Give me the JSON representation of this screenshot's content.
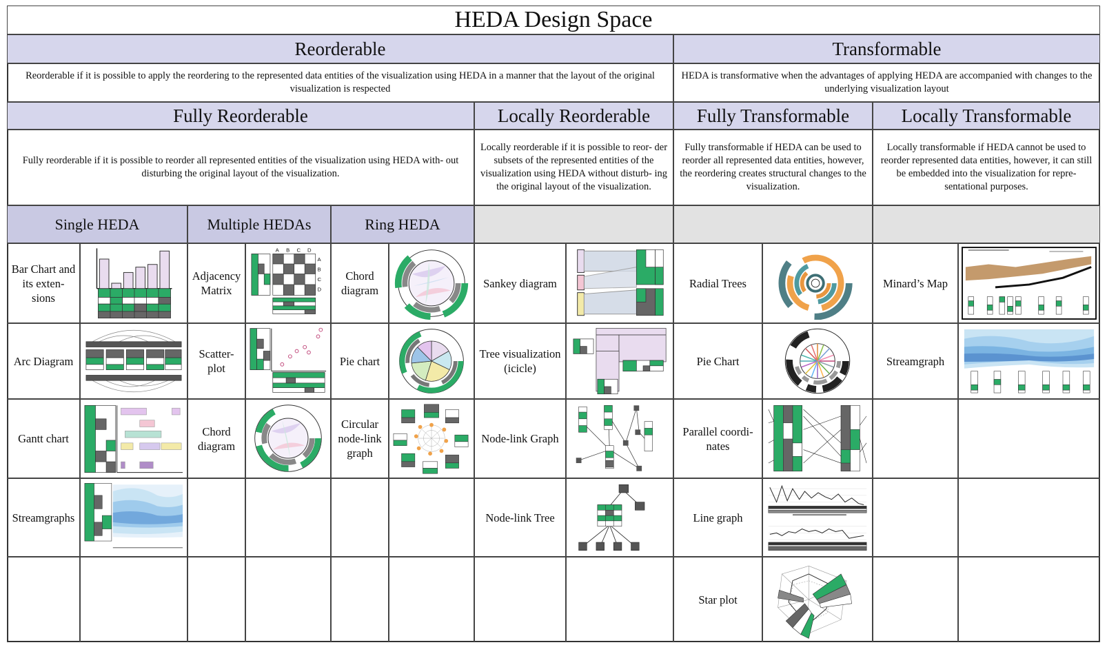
{
  "title": "HEDA Design Space",
  "reorderable": {
    "label": "Reorderable",
    "description": "Reorderable if it is possible to apply the reordering to the represented data entities of the visualization  using HEDA in a manner that the layout of the original visualization is respected"
  },
  "transformable": {
    "label": "Transformable",
    "description": "HEDA is transformative when the advantages of applying HEDA are accompanied with changes to the underlying visualization layout"
  },
  "fully_reorderable": {
    "label": "Fully Reorderable",
    "description": "Fully reorderable if it is possible to reorder all represented entities of the visualization using HEDA with- out disturbing the original layout of the visualization."
  },
  "locally_reorderable": {
    "label": "Locally Reorderable",
    "description": "Locally reorderable if it is possible to reor- der subsets of the represented entities of the visualization using HEDA without disturb- ing the original layout of the visualization."
  },
  "fully_transformable": {
    "label": "Fully Transformable",
    "description": "Fully transformable if HEDA can be used to reorder all represented data entities, however, the reordering creates structural changes to the visualization."
  },
  "locally_transformable": {
    "label": "Locally Transformable",
    "description": "Locally transformable if HEDA cannot be used to reorder represented data entities, however, it can still be embedded into the visualization for repre- sentational purposes."
  },
  "subcategories": {
    "single": "Single HEDA",
    "multiple": "Multiple HEDAs",
    "ring": "Ring HEDA"
  },
  "single_heda": [
    "Bar Chart and its exten- sions",
    "Arc Diagram",
    "Gantt chart",
    "Streamgraphs"
  ],
  "multiple_hedas": [
    "Adjacency Matrix",
    "Scatter- plot",
    "Chord diagram"
  ],
  "ring_heda": [
    "Chord diagram",
    "Pie chart",
    "Circular node-link graph"
  ],
  "locally_reorderable_items": [
    "Sankey diagram",
    "Tree visualization (icicle)",
    "Node-link Graph",
    "Node-link Tree"
  ],
  "fully_transformable_items": [
    "Radial Trees",
    "Pie Chart",
    "Parallel coordi- nates",
    "Line graph",
    "Star plot"
  ],
  "locally_transformable_items": [
    "Minard’s Map",
    "Streamgraph"
  ],
  "matrix_labels": [
    "A",
    "B",
    "C",
    "D"
  ],
  "colors": {
    "header": "#d6d6ec",
    "subheader": "#c9c9e3",
    "empty_header": "#e2e2e2",
    "heda_green": "#2bab66",
    "heda_dark": "#5f5f5f",
    "bar_fill": "#e9dcef"
  }
}
